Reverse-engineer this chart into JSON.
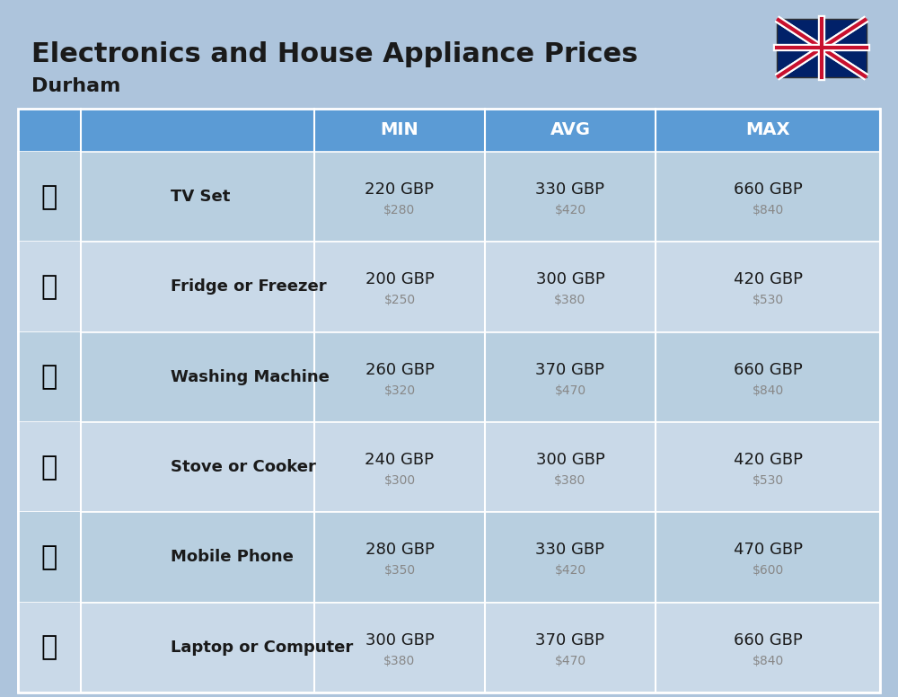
{
  "title": "Electronics and House Appliance Prices",
  "subtitle": "Durham",
  "bg_color": "#adc4dc",
  "header_color": "#5b9bd5",
  "row_color_odd": "#b8cfe0",
  "row_color_even": "#c9d9e8",
  "divider_color": "#8baec8",
  "header_text_color": "#ffffff",
  "item_name_color": "#1a1a1a",
  "gbp_color": "#1a1a1a",
  "usd_color": "#888888",
  "col_headers": [
    "MIN",
    "AVG",
    "MAX"
  ],
  "rows": [
    {
      "name": "TV Set",
      "emoji": "📺",
      "min_gbp": "220 GBP",
      "min_usd": "$280",
      "avg_gbp": "330 GBP",
      "avg_usd": "$420",
      "max_gbp": "660 GBP",
      "max_usd": "$840"
    },
    {
      "name": "Fridge or Freezer",
      "emoji": "🍧",
      "min_gbp": "200 GBP",
      "min_usd": "$250",
      "avg_gbp": "300 GBP",
      "avg_usd": "$380",
      "max_gbp": "420 GBP",
      "max_usd": "$530"
    },
    {
      "name": "Washing Machine",
      "emoji": "🧹",
      "min_gbp": "260 GBP",
      "min_usd": "$320",
      "avg_gbp": "370 GBP",
      "avg_usd": "$470",
      "max_gbp": "660 GBP",
      "max_usd": "$840"
    },
    {
      "name": "Stove or Cooker",
      "emoji": "🔥",
      "min_gbp": "240 GBP",
      "min_usd": "$300",
      "avg_gbp": "300 GBP",
      "avg_usd": "$380",
      "max_gbp": "420 GBP",
      "max_usd": "$530"
    },
    {
      "name": "Mobile Phone",
      "emoji": "📱",
      "min_gbp": "280 GBP",
      "min_usd": "$350",
      "avg_gbp": "330 GBP",
      "avg_usd": "$420",
      "max_gbp": "470 GBP",
      "max_usd": "$600"
    },
    {
      "name": "Laptop or Computer",
      "emoji": "💻",
      "min_gbp": "300 GBP",
      "min_usd": "$380",
      "avg_gbp": "370 GBP",
      "avg_usd": "$470",
      "max_gbp": "660 GBP",
      "max_usd": "$840"
    }
  ],
  "icon_emojis": [
    "📺",
    "❄️",
    "🐕",
    "🔥",
    "📱",
    "💻"
  ]
}
